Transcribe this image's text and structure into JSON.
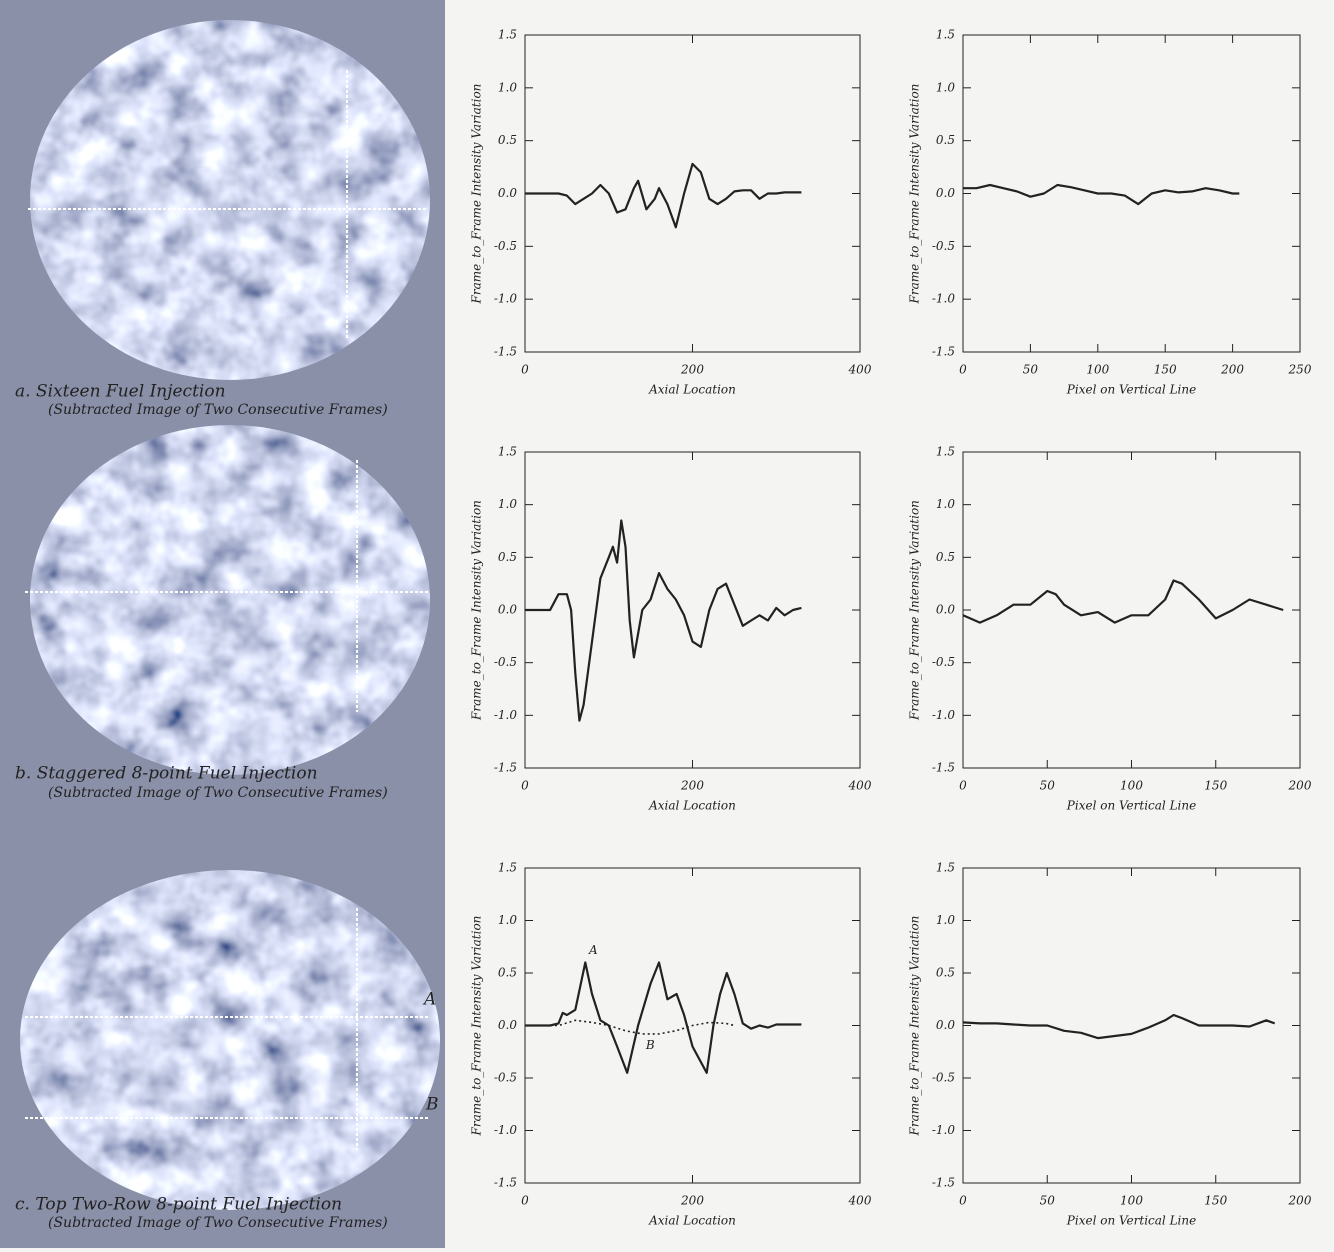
{
  "panels": [
    {
      "caption": "a. Sixteen Fuel Injection",
      "subcaption": "(Subtracted Image of Two Consecutive Frames)"
    },
    {
      "caption": "b. Staggered 8-point Fuel Injection",
      "subcaption": "(Subtracted Image of Two Consecutive Frames)"
    },
    {
      "caption": "c. Top Two-Row 8-point Fuel Injection",
      "subcaption": "(Subtracted Image of Two Consecutive Frames)",
      "line_labels": [
        "A",
        "B"
      ]
    }
  ],
  "chart_data": [
    {
      "type": "line",
      "xlabel": "Axial Location",
      "ylabel": "Frame_to_Frame Intensity Variation",
      "xlim": [
        0,
        400
      ],
      "xticks": [
        0,
        200,
        400
      ],
      "ylim": [
        -1.5,
        1.5
      ],
      "yticks": [
        -1.5,
        {
          "value": -1,
          "label": "-1.0"
        },
        -0.5,
        {
          "value": 0,
          "label": "0.0"
        },
        0.5,
        {
          "value": 1,
          "label": "1.0"
        },
        1.5
      ],
      "color": "#222222",
      "x": [
        0,
        40,
        50,
        60,
        70,
        80,
        90,
        100,
        110,
        120,
        130,
        135,
        145,
        155,
        160,
        170,
        180,
        190,
        200,
        210,
        220,
        230,
        240,
        250,
        260,
        270,
        280,
        290,
        300,
        310,
        330
      ],
      "values": [
        0,
        0,
        -0.02,
        -0.1,
        -0.05,
        0,
        0.08,
        0,
        -0.18,
        -0.15,
        0.05,
        0.12,
        -0.15,
        -0.05,
        0.05,
        -0.1,
        -0.32,
        0,
        0.28,
        0.2,
        -0.05,
        -0.1,
        -0.05,
        0.02,
        0.03,
        0.03,
        -0.05,
        0,
        0,
        0.01,
        0.01
      ]
    },
    {
      "type": "line",
      "xlabel": "Pixel on Vertical Line",
      "ylabel": "Frame_to_Frame Intensity Variation",
      "xlim": [
        0,
        250
      ],
      "xticks": [
        0,
        50,
        100,
        150,
        200,
        250
      ],
      "ylim": [
        -1.5,
        1.5
      ],
      "yticks": [
        -1.5,
        {
          "value": -1,
          "label": "-1.0"
        },
        -0.5,
        {
          "value": 0,
          "label": "0.0"
        },
        0.5,
        {
          "value": 1,
          "label": "1.0"
        },
        1.5
      ],
      "color": "#222222",
      "x": [
        0,
        10,
        20,
        30,
        40,
        50,
        60,
        70,
        80,
        90,
        100,
        110,
        120,
        130,
        140,
        150,
        160,
        170,
        180,
        190,
        200,
        205
      ],
      "values": [
        0.05,
        0.05,
        0.08,
        0.05,
        0.02,
        -0.03,
        0,
        0.08,
        0.06,
        0.03,
        0,
        0,
        -0.02,
        -0.1,
        0,
        0.03,
        0.01,
        0.02,
        0.05,
        0.03,
        0,
        0
      ]
    },
    {
      "type": "line",
      "xlabel": "Axial Location",
      "ylabel": "Frame_to_Frame Intensity Variation",
      "xlim": [
        0,
        400
      ],
      "xticks": [
        0,
        200,
        400
      ],
      "ylim": [
        -1.5,
        1.5
      ],
      "yticks": [
        -1.5,
        {
          "value": -1,
          "label": "-1.0"
        },
        -0.5,
        {
          "value": 0,
          "label": "0.0"
        },
        0.5,
        {
          "value": 1,
          "label": "1.0"
        },
        1.5
      ],
      "color": "#222222",
      "x": [
        0,
        30,
        40,
        50,
        55,
        60,
        65,
        70,
        80,
        90,
        100,
        105,
        110,
        115,
        120,
        125,
        130,
        140,
        150,
        160,
        170,
        180,
        190,
        200,
        210,
        220,
        230,
        240,
        250,
        260,
        270,
        280,
        290,
        300,
        310,
        320,
        330
      ],
      "values": [
        0,
        0,
        0.15,
        0.15,
        0,
        -0.6,
        -1.05,
        -0.9,
        -0.3,
        0.3,
        0.5,
        0.6,
        0.45,
        0.85,
        0.6,
        -0.1,
        -0.45,
        0,
        0.1,
        0.35,
        0.2,
        0.1,
        -0.05,
        -0.3,
        -0.35,
        0,
        0.2,
        0.25,
        0.05,
        -0.15,
        -0.1,
        -0.05,
        -0.1,
        0.02,
        -0.05,
        0,
        0.02
      ]
    },
    {
      "type": "line",
      "xlabel": "Pixel on Vertical Line",
      "ylabel": "Frame_to_Frame Intensity Variation",
      "xlim": [
        0,
        200
      ],
      "xticks": [
        0,
        50,
        100,
        150,
        200
      ],
      "ylim": [
        -1.5,
        1.5
      ],
      "yticks": [
        -1.5,
        {
          "value": -1,
          "label": "-1.0"
        },
        -0.5,
        {
          "value": 0,
          "label": "0.0"
        },
        0.5,
        {
          "value": 1,
          "label": "1.0"
        },
        1.5
      ],
      "color": "#222222",
      "x": [
        0,
        10,
        20,
        30,
        40,
        50,
        55,
        60,
        70,
        80,
        90,
        100,
        110,
        120,
        125,
        130,
        140,
        150,
        160,
        170,
        180,
        190
      ],
      "values": [
        -0.05,
        -0.12,
        -0.05,
        0.05,
        0.05,
        0.18,
        0.15,
        0.05,
        -0.05,
        -0.02,
        -0.12,
        -0.05,
        -0.05,
        0.1,
        0.28,
        0.25,
        0.1,
        -0.08,
        0,
        0.1,
        0.05,
        0
      ]
    },
    {
      "type": "line",
      "xlabel": "Axial Location",
      "ylabel": "Frame_to_Frame Intensity Variation",
      "xlim": [
        0,
        400
      ],
      "xticks": [
        0,
        200,
        400
      ],
      "ylim": [
        -1.5,
        1.5
      ],
      "yticks": [
        -1.5,
        {
          "value": -1,
          "label": "-1.0"
        },
        -0.5,
        {
          "value": 0,
          "label": "0.0"
        },
        0.5,
        {
          "value": 1,
          "label": "1.0"
        },
        1.5
      ],
      "series": [
        {
          "name": "A",
          "color": "#222222",
          "style": "solid",
          "x": [
            0,
            30,
            40,
            45,
            50,
            60,
            72,
            80,
            90,
            100,
            110,
            122,
            135,
            150,
            160,
            170,
            181,
            190,
            200,
            217,
            225,
            233,
            241,
            250,
            260,
            270,
            280,
            290,
            300,
            310,
            330
          ],
          "values": [
            0,
            0,
            0.02,
            0.12,
            0.1,
            0.15,
            0.6,
            0.3,
            0.05,
            0,
            -0.2,
            -0.45,
            0,
            0.4,
            0.6,
            0.25,
            0.3,
            0.1,
            -0.2,
            -0.45,
            0,
            0.3,
            0.5,
            0.3,
            0.02,
            -0.03,
            0,
            -0.02,
            0.01,
            0.01,
            0.01
          ]
        },
        {
          "name": "B",
          "color": "#222222",
          "style": "dotted",
          "x": [
            0,
            40,
            60,
            80,
            100,
            120,
            140,
            160,
            180,
            200,
            220,
            240,
            250
          ],
          "values": [
            0,
            0,
            0.05,
            0.03,
            0,
            -0.05,
            -0.08,
            -0.08,
            -0.05,
            0,
            0.03,
            0.02,
            0
          ]
        }
      ]
    },
    {
      "type": "line",
      "xlabel": "Pixel on Vertical Line",
      "ylabel": "Frame_to_Frame Intensity Variation",
      "xlim": [
        0,
        200
      ],
      "xticks": [
        0,
        50,
        100,
        150,
        200
      ],
      "ylim": [
        -1.5,
        1.5
      ],
      "yticks": [
        -1.5,
        {
          "value": -1,
          "label": "-1.0"
        },
        -0.5,
        {
          "value": 0,
          "label": "0.0"
        },
        0.5,
        {
          "value": 1,
          "label": "1.0"
        },
        1.5
      ],
      "color": "#222222",
      "x": [
        0,
        10,
        20,
        30,
        40,
        50,
        60,
        70,
        80,
        90,
        100,
        110,
        120,
        125,
        130,
        140,
        150,
        160,
        170,
        180,
        185
      ],
      "values": [
        0.03,
        0.02,
        0.02,
        0.01,
        0,
        0,
        -0.05,
        -0.07,
        -0.12,
        -0.1,
        -0.08,
        -0.02,
        0.05,
        0.1,
        0.07,
        0,
        0,
        0,
        -0.01,
        0.05,
        0.02
      ]
    }
  ]
}
